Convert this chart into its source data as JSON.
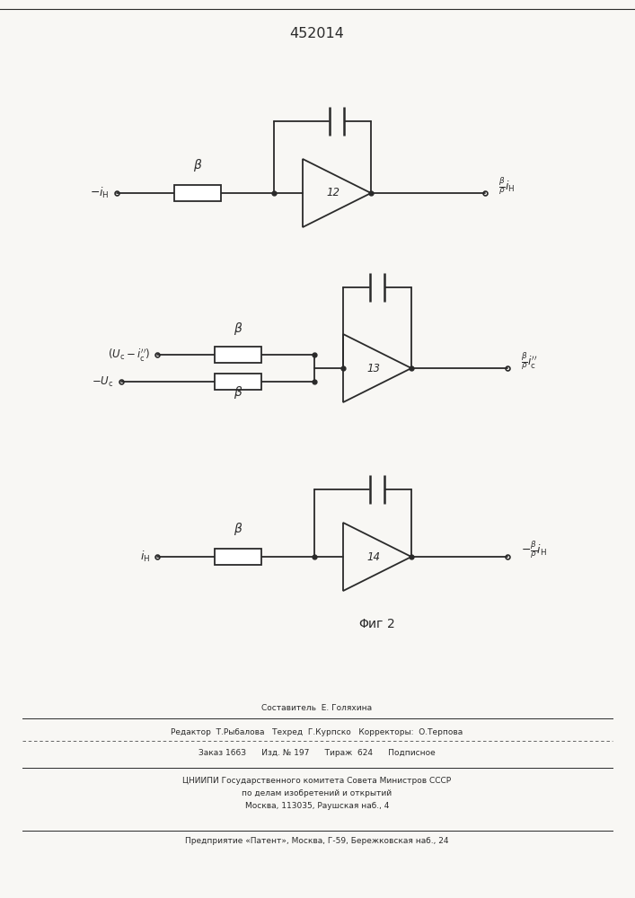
{
  "title": "452014",
  "fig_color": "#f8f7f4",
  "line_color": "#2a2a2a",
  "line_width": 1.3,
  "footer_lines": [
    "Составитель  Е. Голяхина",
    "Редактор  Т.Рыбалова   Техред  Г.Курпско   Корректоры:  О.Терпова",
    "Заказ 166З      Изд. № 197      Тираж  624      Подписное",
    "ЦНИИПИ Государственного комитета Совета Министров СССР",
    "по делам изобретений и открытий",
    "Москва, 113035, Раушская наб., 4",
    "Предприятие «Патент», Москва, Г-59, Бережковская наб., 24"
  ]
}
